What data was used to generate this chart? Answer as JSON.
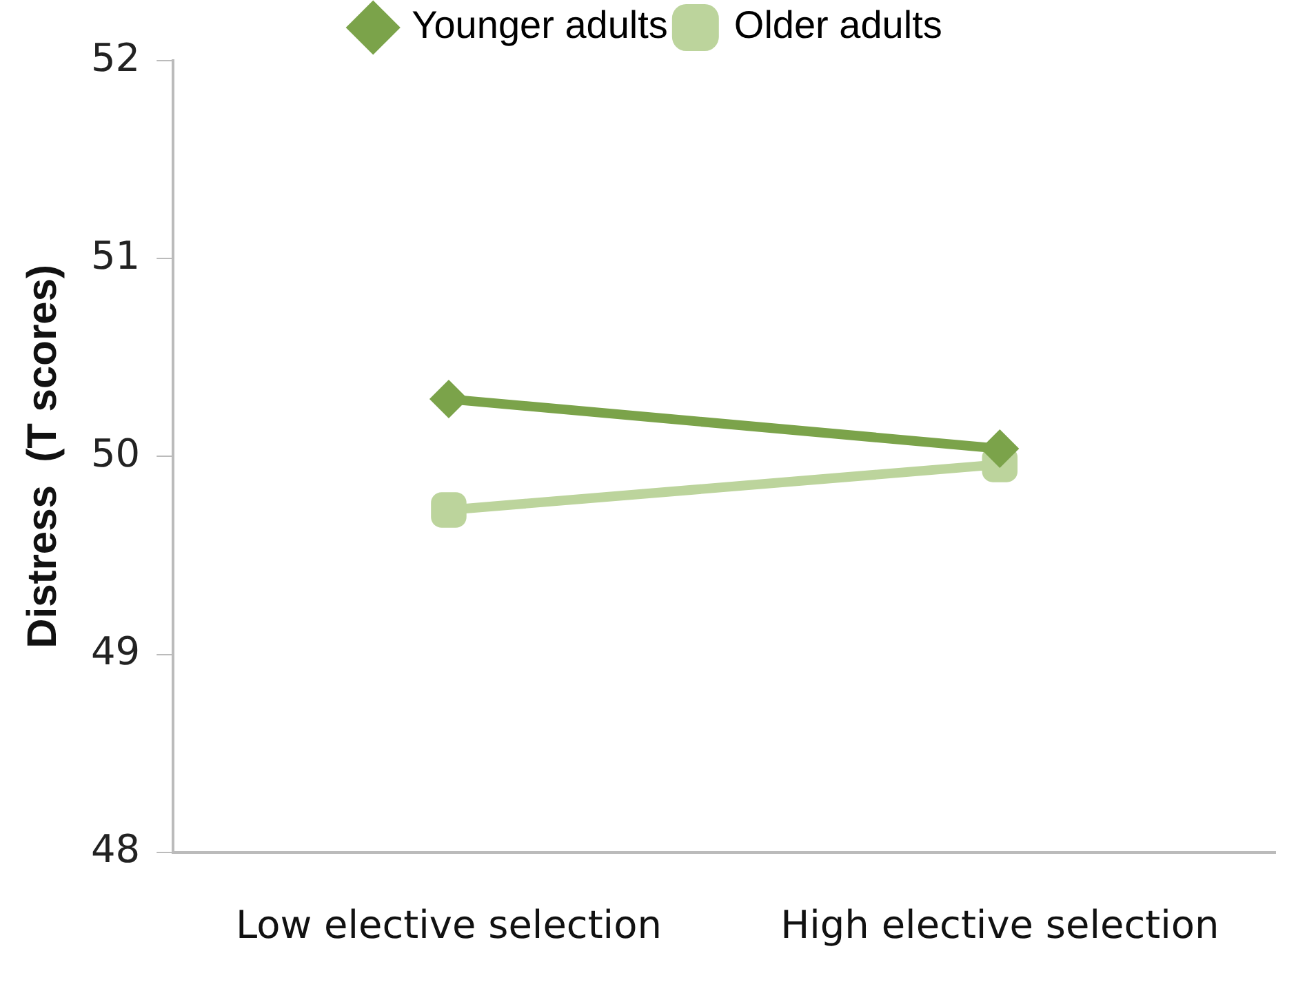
{
  "chart_data": {
    "type": "line",
    "ylabel": "Distress  (T scores)",
    "categories": [
      "Low elective selection",
      "High elective selection"
    ],
    "series": [
      {
        "name": "Younger adults",
        "color": "#7ba34a",
        "marker": "diamond",
        "values": [
          50.29,
          50.04
        ]
      },
      {
        "name": "Older adults",
        "color": "#bcd49c",
        "marker": "square",
        "values": [
          49.73,
          49.96
        ]
      }
    ],
    "ylim": [
      48,
      52
    ],
    "yticks": [
      48,
      49,
      50,
      51,
      52
    ],
    "grid": false,
    "legend": "top",
    "line_style": "solid"
  }
}
